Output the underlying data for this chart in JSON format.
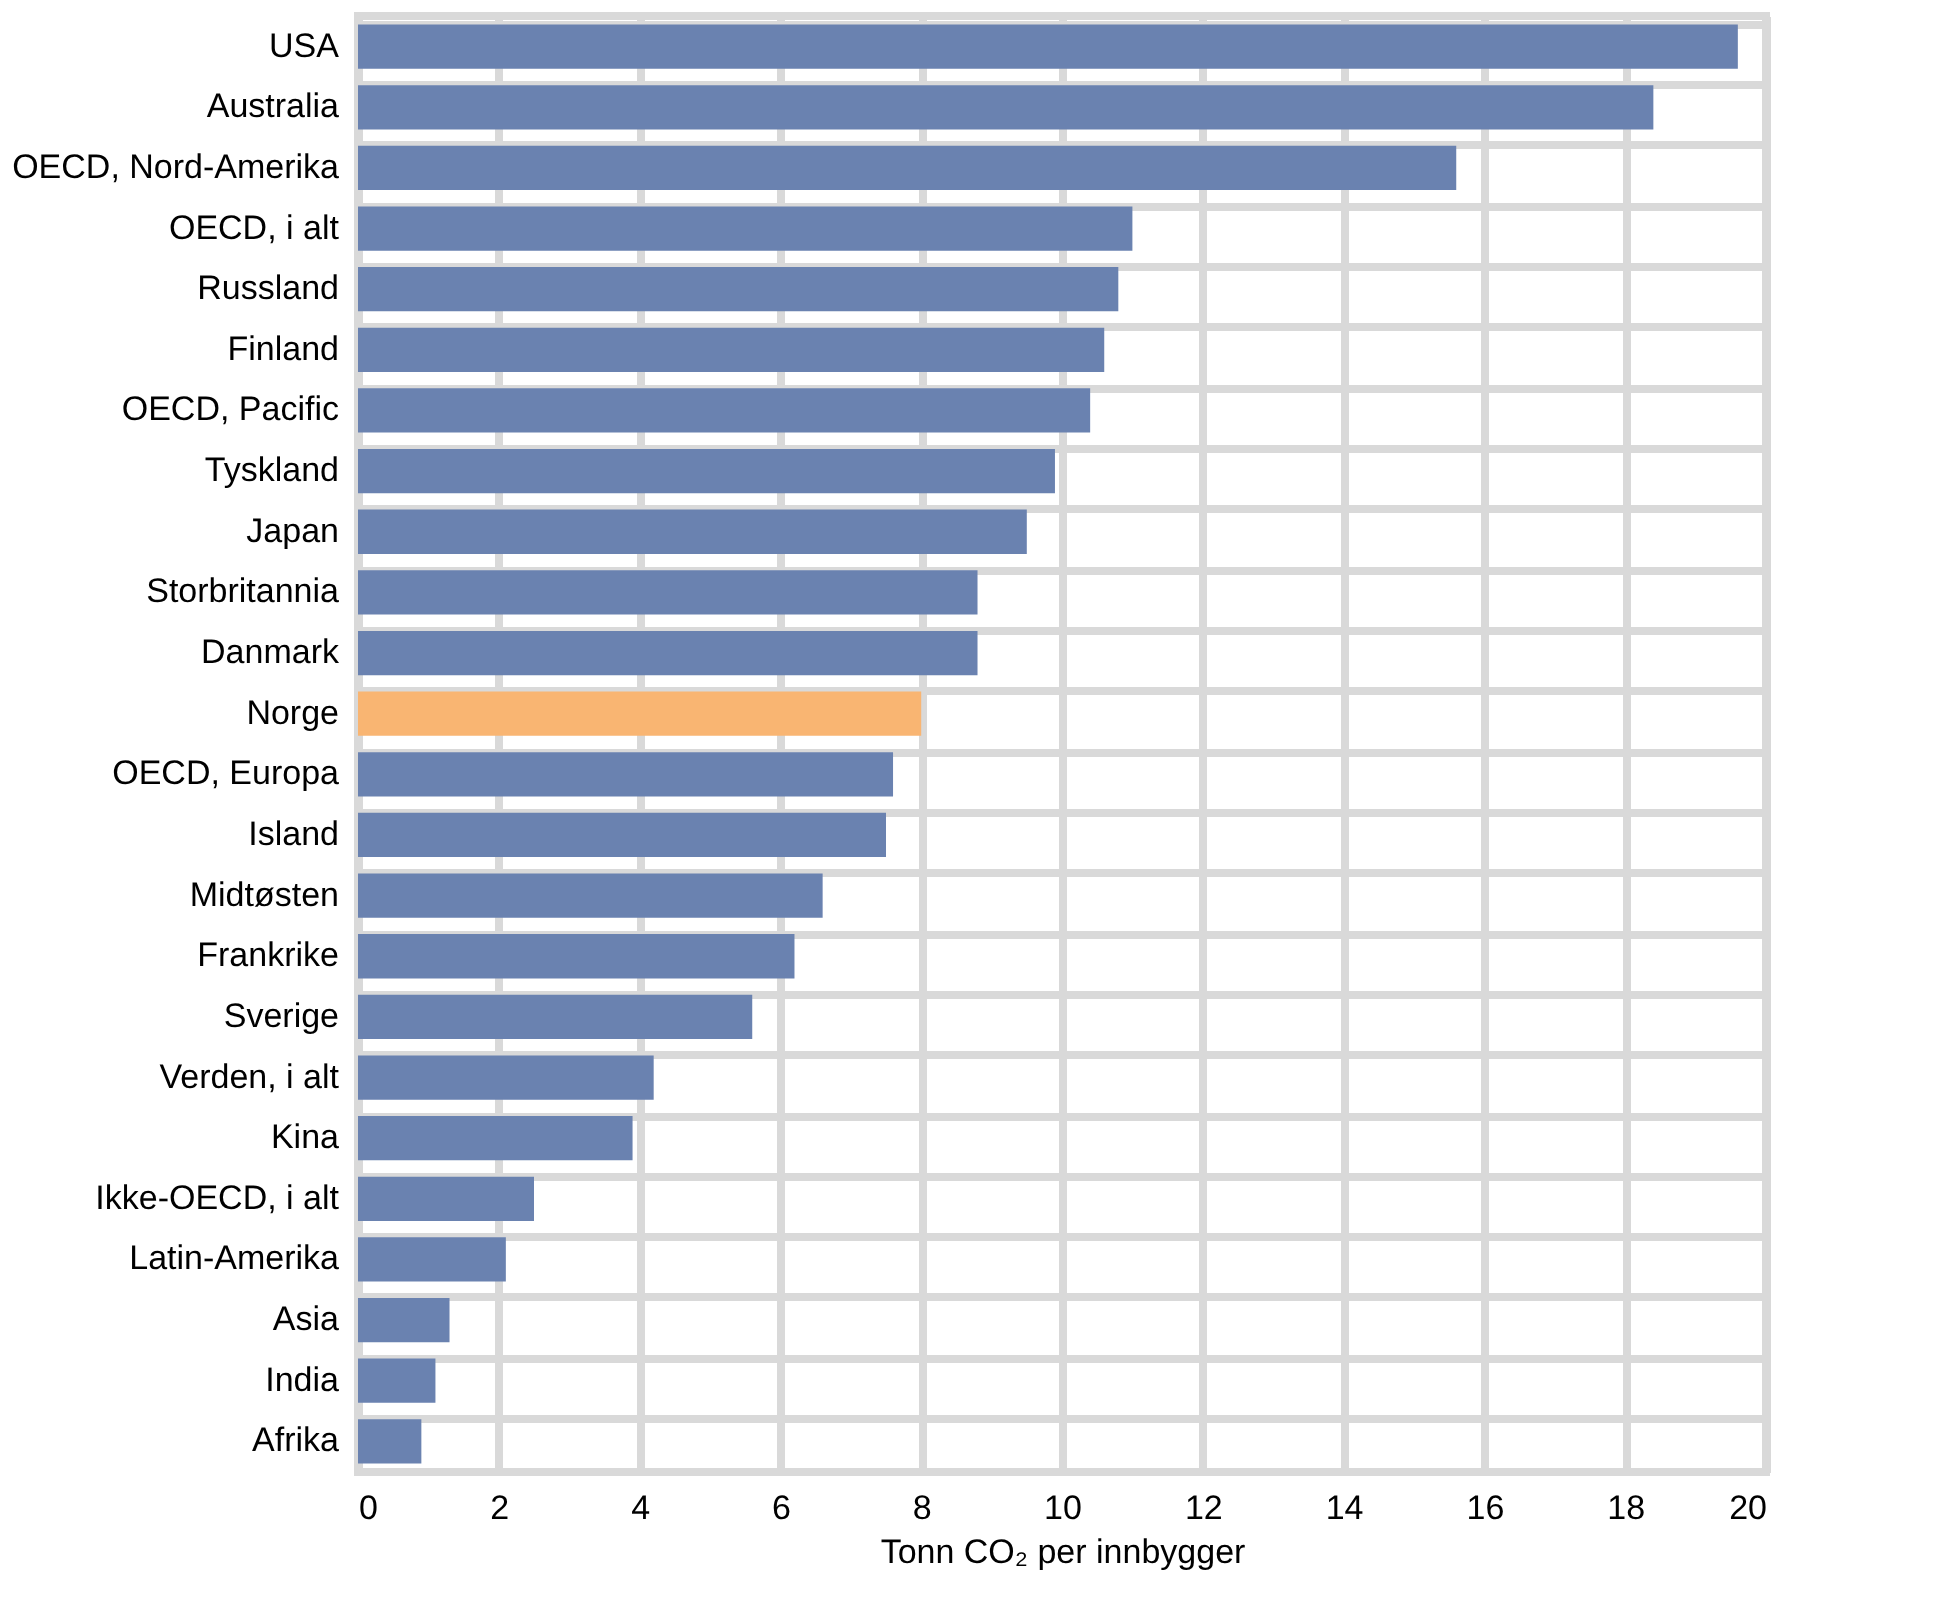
{
  "chart_data": {
    "type": "bar",
    "orientation": "horizontal",
    "xlabel": "Tonn CO₂ per innbygger",
    "categories": [
      "USA",
      "Australia",
      "OECD, Nord-Amerika",
      "OECD, i alt",
      "Russland",
      "Finland",
      "OECD, Pacific",
      "Tyskland",
      "Japan",
      "Storbritannia",
      "Danmark",
      "Norge",
      "OECD, Europa",
      "Island",
      "Midtøsten",
      "Frankrike",
      "Sverige",
      "Verden, i alt",
      "Kina",
      "Ikke-OECD, i alt",
      "Latin-Amerika",
      "Asia",
      "India",
      "Afrika"
    ],
    "values": [
      19.6,
      18.4,
      15.6,
      11.0,
      10.8,
      10.6,
      10.4,
      9.9,
      9.5,
      8.8,
      8.8,
      8.0,
      7.6,
      7.5,
      6.6,
      6.2,
      5.6,
      4.2,
      3.9,
      2.5,
      2.1,
      1.3,
      1.1,
      0.9
    ],
    "colors": [
      "#6a82b0",
      "#6a82b0",
      "#6a82b0",
      "#6a82b0",
      "#6a82b0",
      "#6a82b0",
      "#6a82b0",
      "#6a82b0",
      "#6a82b0",
      "#6a82b0",
      "#6a82b0",
      "#f9b572",
      "#6a82b0",
      "#6a82b0",
      "#6a82b0",
      "#6a82b0",
      "#6a82b0",
      "#6a82b0",
      "#6a82b0",
      "#6a82b0",
      "#6a82b0",
      "#6a82b0",
      "#6a82b0",
      "#6a82b0"
    ],
    "xlim": [
      0,
      20
    ],
    "xticks": [
      0,
      2,
      4,
      6,
      8,
      10,
      12,
      14,
      16,
      18,
      20
    ],
    "grid": true,
    "legend": false
  }
}
